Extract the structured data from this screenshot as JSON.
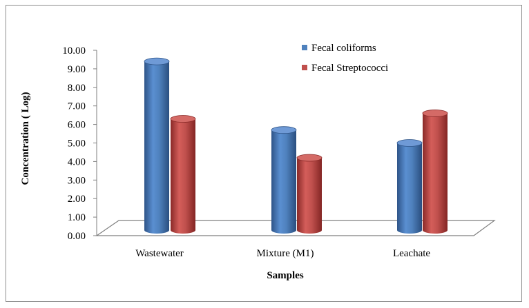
{
  "chart_data": {
    "type": "bar",
    "title": "",
    "xlabel": "Samples",
    "ylabel": "Concentration ( Log)",
    "ylim": [
      0,
      10
    ],
    "yticks": [
      "0.00",
      "1.00",
      "2.00",
      "3.00",
      "4.00",
      "5.00",
      "6.00",
      "7.00",
      "8.00",
      "9.00",
      "10.00"
    ],
    "categories": [
      "Wastewater",
      "Mixture (M1)",
      "Leachate"
    ],
    "series": [
      {
        "name": "Fecal coliforms",
        "values": [
          9.4,
          5.7,
          5.0
        ],
        "color": "#4f81bd"
      },
      {
        "name": "Fecal Streptococci",
        "values": [
          6.3,
          4.2,
          6.6
        ],
        "color": "#c0504d"
      }
    ],
    "style": "3d-cylinder",
    "legend_position": "top-right",
    "grid": false
  }
}
